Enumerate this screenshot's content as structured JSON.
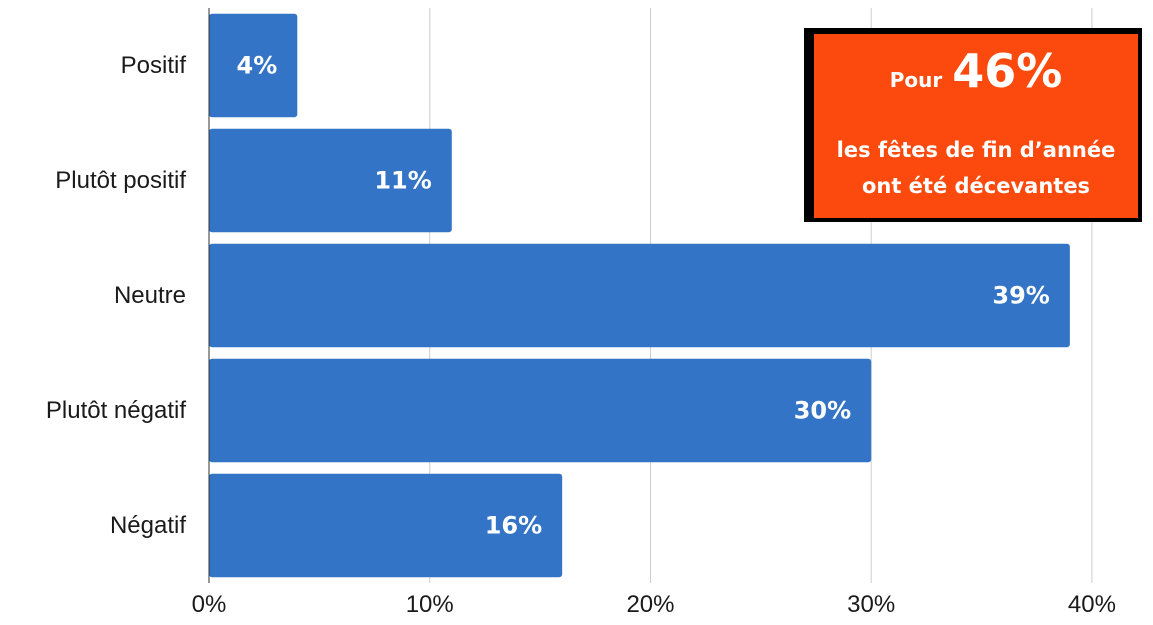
{
  "chart_data": {
    "type": "bar",
    "orientation": "horizontal",
    "categories": [
      "Positif",
      "Plutôt positif",
      "Neutre",
      "Plutôt négatif",
      "Négatif"
    ],
    "values": [
      4,
      11,
      39,
      30,
      16
    ],
    "value_labels": [
      "4%",
      "11%",
      "39%",
      "30%",
      "16%"
    ],
    "xticks": [
      0,
      10,
      20,
      30,
      40
    ],
    "xtick_labels": [
      "0%",
      "10%",
      "20%",
      "30%",
      "40%"
    ],
    "xlim": [
      0,
      41
    ],
    "grid": "vertical",
    "bar_color": "#3374c6",
    "grid_color": "#cccccc",
    "title": "",
    "xlabel": "",
    "ylabel": ""
  },
  "callout": {
    "prefix": "Pour",
    "value": "46%",
    "line2": "les fêtes de fin d’année",
    "line3": "ont été décevantes",
    "background": "#fc4a0e",
    "border": "#000000"
  }
}
